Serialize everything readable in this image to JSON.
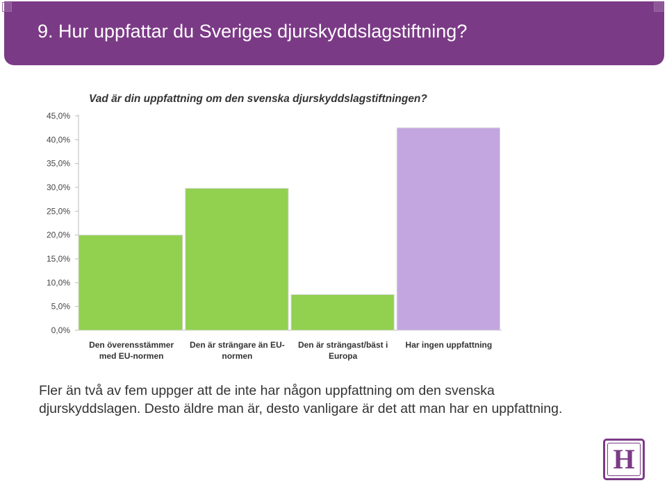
{
  "header": {
    "title": "9. Hur uppfattar du Sveriges djurskyddslagstiftning?"
  },
  "chart_data": {
    "type": "bar",
    "title": "Vad är din uppfattning om den svenska djurskyddslagstiftningen?",
    "categories": [
      [
        "Den överensstämmer",
        "med EU-normen"
      ],
      [
        "Den är strängare än EU-",
        "normen"
      ],
      [
        "Den är strängast/bäst i",
        "Europa"
      ],
      [
        "Har ingen uppfattning"
      ]
    ],
    "values": [
      20.0,
      29.8,
      7.5,
      42.5
    ],
    "bar_colors": [
      "#92d050",
      "#92d050",
      "#92d050",
      "#c3a6e0"
    ],
    "ylim": [
      0,
      45
    ],
    "yticks": [
      "0,0%",
      "5,0%",
      "10,0%",
      "15,0%",
      "20,0%",
      "25,0%",
      "30,0%",
      "35,0%",
      "40,0%",
      "45,0%"
    ],
    "grid": false,
    "legend": "none"
  },
  "body_text": "Fler än två av fem uppger att de inte har någon uppfattning om den svenska djurskyddslagen. Desto äldre man är, desto vanligare är det att man har en uppfattning.",
  "logo": {
    "letter": "H"
  }
}
